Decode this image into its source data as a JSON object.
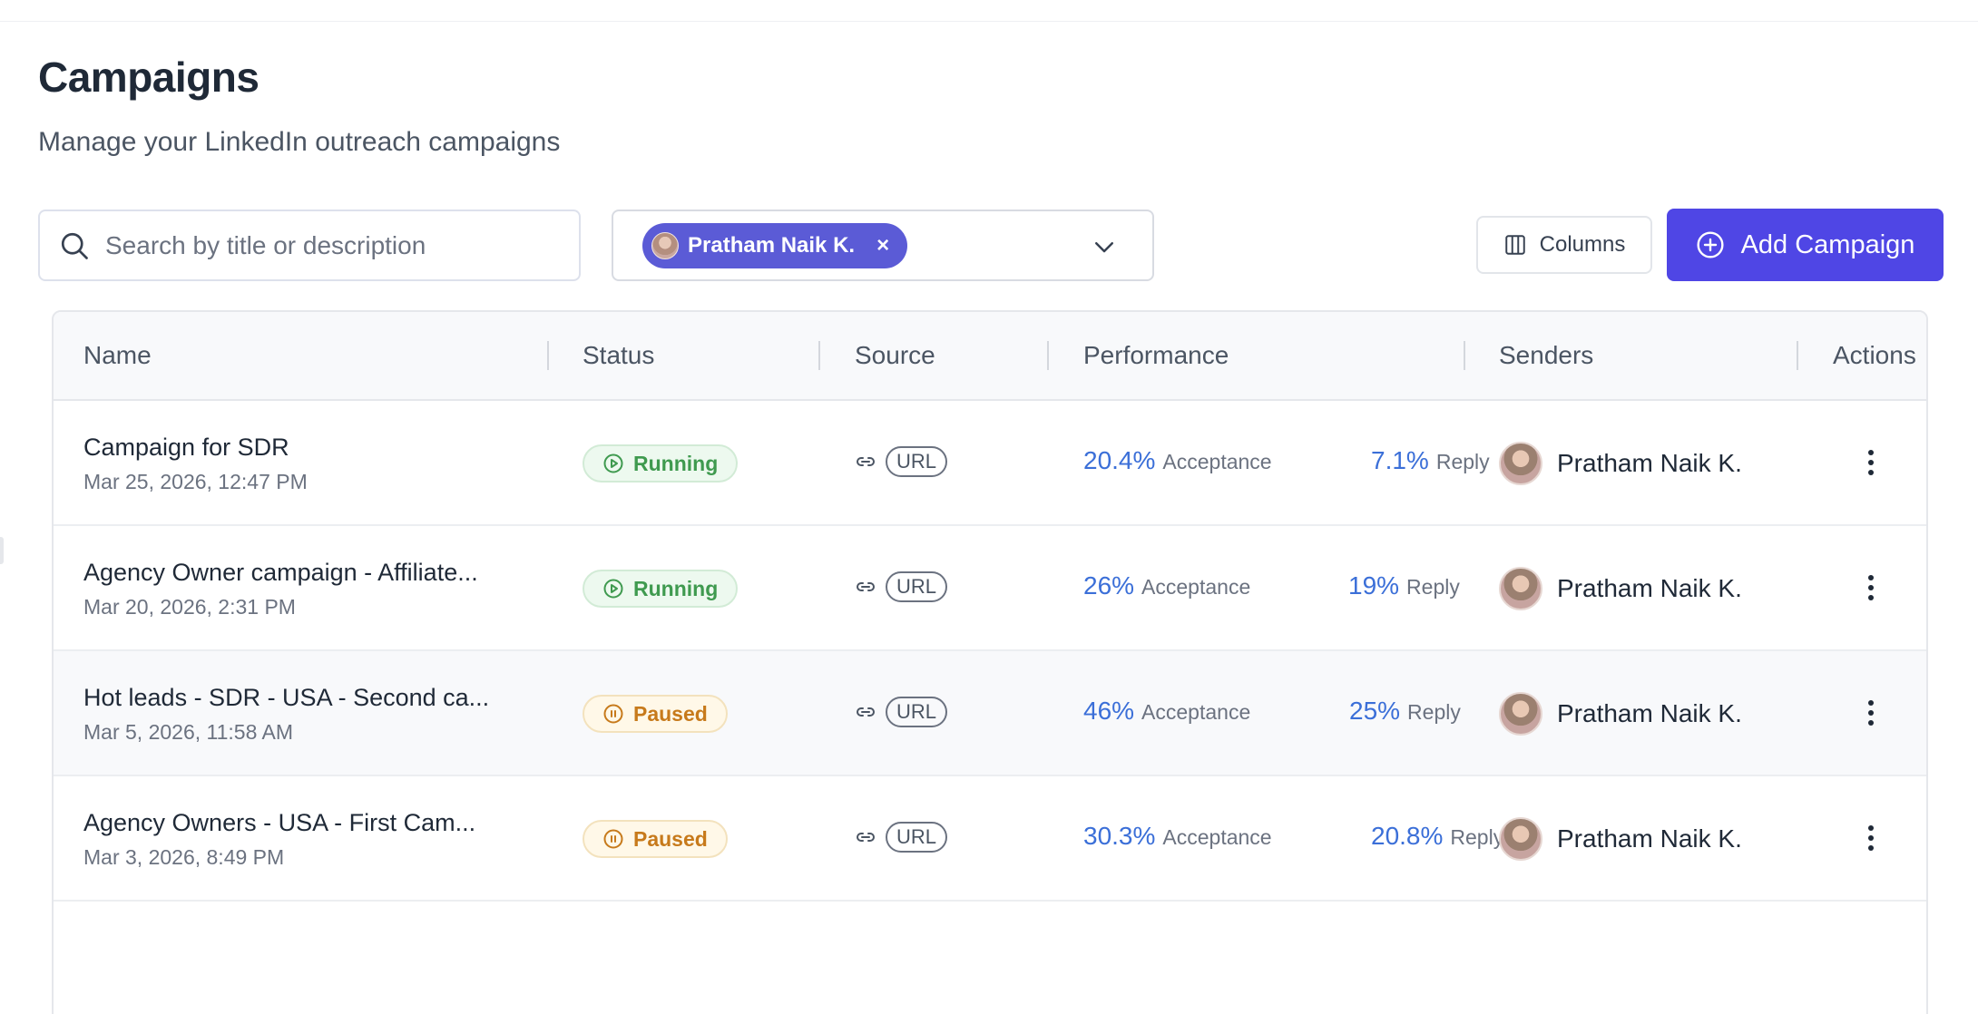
{
  "header": {
    "title": "Campaigns",
    "subtitle": "Manage your LinkedIn outreach campaigns"
  },
  "toolbar": {
    "search_placeholder": "Search by title or description",
    "filter_chip_label": "Pratham Naik K.",
    "filter_chip_remove": "×",
    "columns_label": "Columns",
    "add_label": "Add Campaign"
  },
  "colors": {
    "primary": "#4f46e5",
    "chip": "#5b5bd6",
    "running": "#3f9a4f",
    "paused": "#c77a1b",
    "metric": "#3b6fd8"
  },
  "table": {
    "headers": [
      "Name",
      "Status",
      "Source",
      "Performance",
      "Senders",
      "Actions"
    ],
    "acceptance_label": "Acceptance",
    "reply_label": "Reply",
    "rows": [
      {
        "name": "Campaign for SDR",
        "date": "Mar 25, 2026, 12:47 PM",
        "status": "Running",
        "status_icon": "play-circle-icon",
        "source": "URL",
        "acceptance": "20.4%",
        "reply": "7.1%",
        "sender": "Pratham Naik K."
      },
      {
        "name": "Agency Owner campaign - Affiliate...",
        "date": "Mar 20, 2026, 2:31 PM",
        "status": "Running",
        "status_icon": "play-circle-icon",
        "source": "URL",
        "acceptance": "26%",
        "reply": "19%",
        "sender": "Pratham Naik K."
      },
      {
        "name": "Hot leads - SDR - USA - Second ca...",
        "date": "Mar 5, 2026, 11:58 AM",
        "status": "Paused",
        "status_icon": "pause-circle-icon",
        "source": "URL",
        "acceptance": "46%",
        "reply": "25%",
        "sender": "Pratham Naik K."
      },
      {
        "name": "Agency Owners - USA - First Cam...",
        "date": "Mar 3, 2026, 8:49 PM",
        "status": "Paused",
        "status_icon": "pause-circle-icon",
        "source": "URL",
        "acceptance": "30.3%",
        "reply": "20.8%",
        "sender": "Pratham Naik K."
      }
    ]
  }
}
